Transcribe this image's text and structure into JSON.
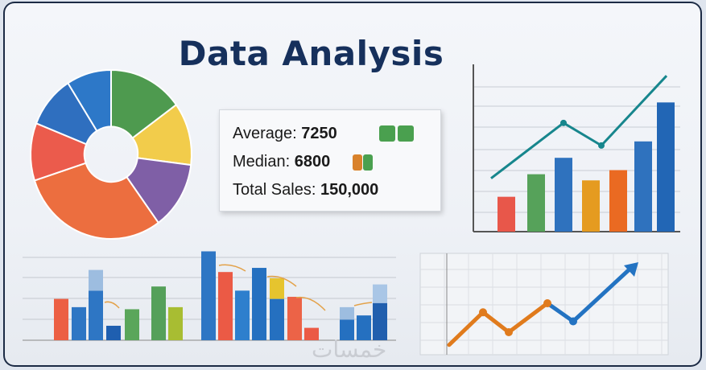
{
  "title": "Data Analysis",
  "stats": {
    "average_label": "Average:",
    "average_value": "7250",
    "median_label": "Median:",
    "median_value": "6800",
    "total_label": "Total Sales:",
    "total_value": "150,000",
    "average_swatches": [
      "#4aa04f",
      "#4aa04f"
    ],
    "median_swatches": [
      "#d9822b",
      "#4aa04f"
    ]
  },
  "watermark": "خمسات",
  "chart_data": [
    {
      "type": "pie",
      "donut": true,
      "values": [
        15,
        12,
        13,
        30,
        11,
        10,
        9
      ],
      "colors": [
        "#4e9a4f",
        "#f2cc4b",
        "#7f5fa6",
        "#ec6e3f",
        "#eb5b4c",
        "#2f6fbf",
        "#2d78c8"
      ]
    },
    {
      "type": "bar",
      "values": [
        1.7,
        2.8,
        3.6,
        2.5,
        3.0,
        4.4,
        6.3
      ],
      "colors": [
        "#e8574a",
        "#56a25a",
        "#2f72be",
        "#e59b20",
        "#ea6a22",
        "#2f72be",
        "#2266b5"
      ],
      "line": {
        "values": [
          2.6,
          5.3,
          4.2,
          7.6
        ],
        "color": "#17868d"
      },
      "grid": true
    },
    {
      "type": "bar",
      "grid": true,
      "values": [
        2.0,
        1.6,
        2.4,
        0.7,
        1.5,
        2.6,
        1.6,
        4.3,
        3.3,
        2.4,
        3.5,
        2.0,
        2.1,
        0.6,
        1.0,
        1.2,
        1.8
      ],
      "stack_top": [
        0,
        0,
        1.0,
        0,
        0,
        0,
        0,
        0,
        0,
        0,
        0,
        1.0,
        0,
        0,
        0.6,
        0,
        0.9
      ],
      "colors": [
        "#ec5f43",
        "#2e76c4",
        "#2e76c4",
        "#1f5fb0",
        "#5aa65a",
        "#55a05a",
        "#a8bd32",
        "#2e76c4",
        "#eb5a45",
        "#2e7fcd",
        "#2570c0",
        "#2570c0",
        "#ec6347",
        "#eb5a45",
        "#2570c0",
        "#2570c0",
        "#215fae"
      ],
      "stack_colors": [
        "",
        "",
        "#9dbde0",
        "",
        "",
        "",
        "",
        "",
        "",
        "",
        "",
        "#e6c42e",
        "",
        "",
        "#9dbde0",
        "",
        "#a9c6e6"
      ]
    },
    {
      "type": "line",
      "values": [
        0.5,
        2.3,
        1.2,
        2.8,
        1.8,
        4.8
      ],
      "colors": [
        "#e07b1d",
        "#e07b1d",
        "#e07b1d",
        "#e07b1d",
        "#2373c2",
        "#2373c2"
      ],
      "grid": true
    }
  ]
}
